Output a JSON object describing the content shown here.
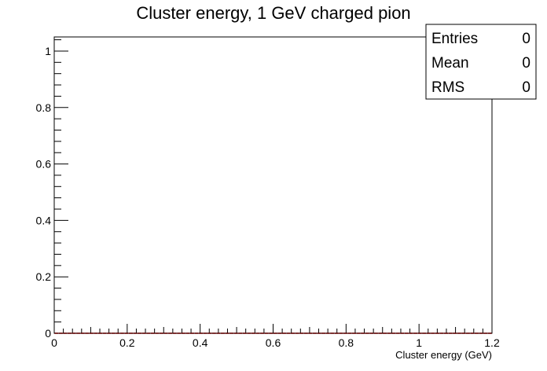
{
  "chart_data": {
    "type": "scatter",
    "title": "Cluster energy, 1 GeV charged pion",
    "xlabel": "Cluster energy (GeV)",
    "ylabel": "",
    "xlim": [
      0,
      1.2
    ],
    "ylim": [
      0,
      1.05
    ],
    "x_ticks": [
      "0",
      "0.2",
      "0.4",
      "0.6",
      "0.8",
      "1",
      "1.2"
    ],
    "y_ticks": [
      "0",
      "0.2",
      "0.4",
      "0.6",
      "0.8",
      "1"
    ],
    "x_tick_values": [
      0,
      0.2,
      0.4,
      0.6,
      0.8,
      1.0,
      1.2
    ],
    "y_tick_values": [
      0,
      0.2,
      0.4,
      0.6,
      0.8,
      1.0
    ],
    "grid": false,
    "legend": "none",
    "marker_color": "#ff0000",
    "series": [
      {
        "x": [
          0.006,
          0.018,
          0.03,
          0.042,
          0.054,
          0.066,
          0.078,
          0.09,
          0.102,
          0.114,
          0.126,
          0.138,
          0.15,
          0.162,
          0.174,
          0.186,
          0.198,
          0.21,
          0.222,
          0.234,
          0.246,
          0.258,
          0.27,
          0.282,
          0.294,
          0.306,
          0.318,
          0.33,
          0.342,
          0.354,
          0.366,
          0.378,
          0.39,
          0.402,
          0.414,
          0.426,
          0.438,
          0.45,
          0.462,
          0.474,
          0.486,
          0.498,
          0.51,
          0.522,
          0.534,
          0.546,
          0.558,
          0.57,
          0.582,
          0.594,
          0.606,
          0.618,
          0.63,
          0.642,
          0.654,
          0.666,
          0.678,
          0.69,
          0.702,
          0.714,
          0.726,
          0.738,
          0.75,
          0.762,
          0.774,
          0.786,
          0.798,
          0.81,
          0.822,
          0.834,
          0.846,
          0.858,
          0.87,
          0.882,
          0.894,
          0.906,
          0.918,
          0.93,
          0.942,
          0.954,
          0.966,
          0.978,
          0.99,
          1.002,
          1.014,
          1.026,
          1.038,
          1.05,
          1.062,
          1.074,
          1.086,
          1.098,
          1.11,
          1.122,
          1.134,
          1.146,
          1.158,
          1.17,
          1.182,
          1.194
        ],
        "values": [
          0,
          0,
          0,
          0,
          0,
          0,
          0,
          0,
          0,
          0,
          0,
          0,
          0,
          0,
          0,
          0,
          0,
          0,
          0,
          0,
          0,
          0,
          0,
          0,
          0,
          0,
          0,
          0,
          0,
          0,
          0,
          0,
          0,
          0,
          0,
          0,
          0,
          0,
          0,
          0,
          0,
          0,
          0,
          0,
          0,
          0,
          0,
          0,
          0,
          0,
          0,
          0,
          0,
          0,
          0,
          0,
          0,
          0,
          0,
          0,
          0,
          0,
          0,
          0,
          0,
          0,
          0,
          0,
          0,
          0,
          0,
          0,
          0,
          0,
          0,
          0,
          0,
          0,
          0,
          0,
          0,
          0,
          0,
          0,
          0,
          0,
          0,
          0,
          0,
          0,
          0,
          0,
          0,
          0,
          0,
          0,
          0,
          0,
          0,
          0
        ]
      }
    ]
  },
  "stats": {
    "entries_label": "Entries",
    "entries_value": "0",
    "mean_label": "Mean",
    "mean_value": "0",
    "rms_label": "RMS",
    "rms_value": "0"
  }
}
